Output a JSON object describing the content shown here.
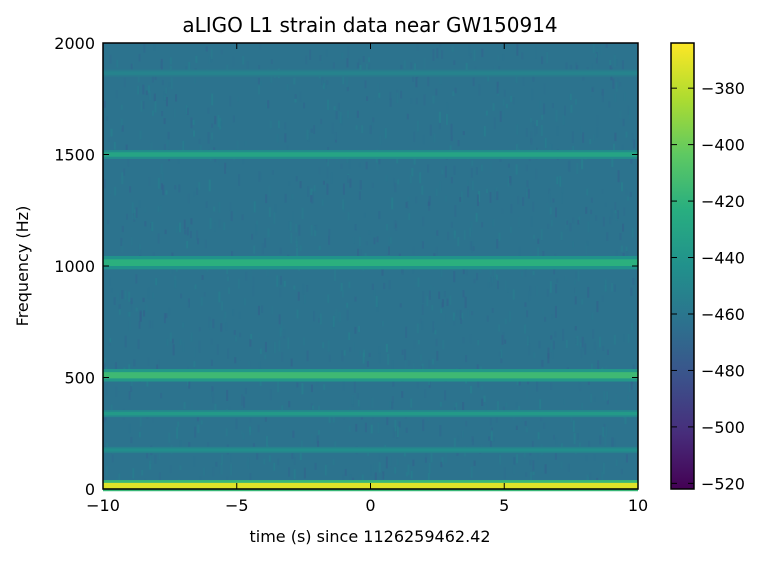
{
  "chart_data": {
    "type": "heatmap",
    "title": "aLIGO L1 strain data near GW150914",
    "xlabel": "time (s) since 1126259462.42",
    "ylabel": "Frequency (Hz)",
    "xlim": [
      -10,
      10
    ],
    "ylim": [
      0,
      2000
    ],
    "xticks": [
      -10,
      -5,
      0,
      5,
      10
    ],
    "xtick_labels": [
      "−10",
      "−5",
      "0",
      "5",
      "10"
    ],
    "yticks": [
      0,
      500,
      1000,
      1500,
      2000
    ],
    "ytick_labels": [
      "0",
      "500",
      "1000",
      "1500",
      "2000"
    ],
    "colorbar": {
      "range": [
        -522,
        -364
      ],
      "ticks": [
        -380,
        -400,
        -420,
        -440,
        -460,
        -480,
        -500,
        -520
      ],
      "tick_labels": [
        "−380",
        "−400",
        "−420",
        "−440",
        "−460",
        "−480",
        "−500",
        "−520"
      ],
      "colormap": "viridis"
    },
    "background_level": -462,
    "bands": [
      {
        "freq": 15,
        "width": 25,
        "level": -372
      },
      {
        "freq": 175,
        "width": 14,
        "level": -445
      },
      {
        "freq": 338,
        "width": 16,
        "level": -437
      },
      {
        "freq": 510,
        "width": 28,
        "level": -415
      },
      {
        "freq": 1015,
        "width": 30,
        "level": -422
      },
      {
        "freq": 1500,
        "width": 20,
        "level": -430
      },
      {
        "freq": 1865,
        "width": 16,
        "level": -452
      }
    ]
  }
}
